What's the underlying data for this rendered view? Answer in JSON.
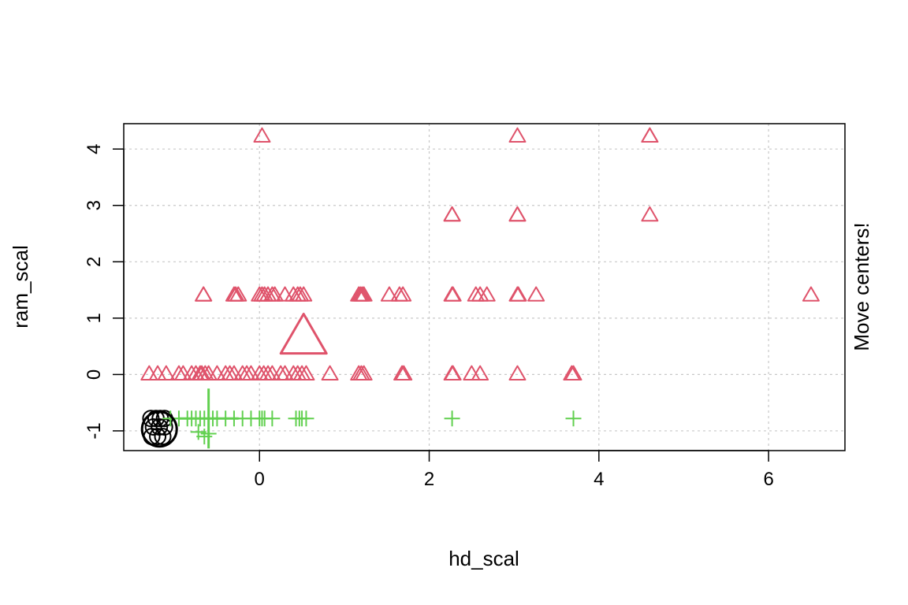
{
  "chart_data": {
    "type": "scatter",
    "title": "",
    "xlabel": "hd_scal",
    "ylabel": "ram_scal",
    "right_label": "Move centers!",
    "xlim": [
      -1.6,
      6.9
    ],
    "ylim": [
      -1.35,
      4.45
    ],
    "x_ticks": [
      0,
      2,
      4,
      6
    ],
    "y_ticks": [
      -1,
      0,
      1,
      2,
      3,
      4
    ],
    "grid": true,
    "series": [
      {
        "shape": "circle",
        "color": "#000000",
        "points": [
          [
            -1.28,
            -0.78
          ],
          [
            -1.22,
            -0.78
          ],
          [
            -1.17,
            -0.78
          ],
          [
            -1.12,
            -0.78
          ],
          [
            -1.27,
            -1.1
          ],
          [
            -1.2,
            -1.1
          ],
          [
            -1.14,
            -1.1
          ],
          [
            -1.25,
            -0.93
          ],
          [
            -1.18,
            -0.93
          ],
          [
            -1.12,
            -0.93
          ]
        ],
        "center": [
          -1.18,
          -0.97
        ]
      },
      {
        "shape": "triangle",
        "color": "#DF536B",
        "points": [
          [
            0.03,
            4.22
          ],
          [
            3.04,
            4.22
          ],
          [
            4.6,
            4.22
          ],
          [
            4.6,
            4.22
          ],
          [
            2.27,
            2.82
          ],
          [
            2.27,
            2.82
          ],
          [
            3.04,
            2.82
          ],
          [
            3.04,
            2.82
          ],
          [
            4.6,
            2.82
          ],
          [
            -0.66,
            1.4
          ],
          [
            -0.66,
            1.4
          ],
          [
            -0.3,
            1.4
          ],
          [
            -0.28,
            1.4
          ],
          [
            -0.25,
            1.4
          ],
          [
            0.0,
            1.4
          ],
          [
            0.03,
            1.4
          ],
          [
            0.06,
            1.4
          ],
          [
            0.1,
            1.4
          ],
          [
            0.15,
            1.4
          ],
          [
            0.18,
            1.4
          ],
          [
            0.3,
            1.4
          ],
          [
            0.4,
            1.4
          ],
          [
            0.45,
            1.4
          ],
          [
            0.48,
            1.4
          ],
          [
            0.52,
            1.4
          ],
          [
            1.17,
            1.4
          ],
          [
            1.19,
            1.4
          ],
          [
            1.21,
            1.4
          ],
          [
            1.23,
            1.4
          ],
          [
            1.53,
            1.4
          ],
          [
            1.65,
            1.4
          ],
          [
            1.69,
            1.4
          ],
          [
            2.27,
            1.4
          ],
          [
            2.28,
            1.4
          ],
          [
            2.55,
            1.4
          ],
          [
            2.6,
            1.4
          ],
          [
            2.68,
            1.4
          ],
          [
            3.04,
            1.4
          ],
          [
            3.05,
            1.4
          ],
          [
            3.26,
            1.4
          ],
          [
            6.5,
            1.4
          ],
          [
            -1.3,
            0.0
          ],
          [
            -1.2,
            0.0
          ],
          [
            -1.1,
            0.0
          ],
          [
            -0.95,
            0.0
          ],
          [
            -0.9,
            0.0
          ],
          [
            -0.8,
            0.0
          ],
          [
            -0.75,
            0.0
          ],
          [
            -0.7,
            0.0
          ],
          [
            -0.68,
            0.0
          ],
          [
            -0.64,
            0.0
          ],
          [
            -0.6,
            0.0
          ],
          [
            -0.5,
            0.0
          ],
          [
            -0.4,
            0.0
          ],
          [
            -0.35,
            0.0
          ],
          [
            -0.3,
            0.0
          ],
          [
            -0.2,
            0.0
          ],
          [
            -0.15,
            0.0
          ],
          [
            -0.1,
            0.0
          ],
          [
            0.0,
            0.0
          ],
          [
            0.05,
            0.0
          ],
          [
            0.1,
            0.0
          ],
          [
            0.15,
            0.0
          ],
          [
            0.25,
            0.0
          ],
          [
            0.3,
            0.0
          ],
          [
            0.4,
            0.0
          ],
          [
            0.45,
            0.0
          ],
          [
            0.5,
            0.0
          ],
          [
            0.55,
            0.0
          ],
          [
            0.83,
            0.0
          ],
          [
            1.17,
            0.0
          ],
          [
            1.2,
            0.0
          ],
          [
            1.23,
            0.0
          ],
          [
            1.68,
            0.0
          ],
          [
            1.7,
            0.0
          ],
          [
            2.27,
            0.0
          ],
          [
            2.28,
            0.0
          ],
          [
            2.5,
            0.0
          ],
          [
            2.6,
            0.0
          ],
          [
            3.04,
            0.0
          ],
          [
            3.68,
            0.0
          ],
          [
            3.7,
            0.0
          ]
        ],
        "center": [
          0.52,
          0.64
        ]
      },
      {
        "shape": "cross",
        "color": "#61D04F",
        "points": [
          [
            -1.05,
            -0.78
          ],
          [
            -0.95,
            -0.78
          ],
          [
            -0.85,
            -0.78
          ],
          [
            -0.8,
            -0.78
          ],
          [
            -0.75,
            -0.78
          ],
          [
            -0.7,
            -0.78
          ],
          [
            -0.65,
            -0.78
          ],
          [
            -0.6,
            -0.78
          ],
          [
            -0.55,
            -0.78
          ],
          [
            -0.5,
            -0.78
          ],
          [
            -0.4,
            -0.78
          ],
          [
            -0.3,
            -0.78
          ],
          [
            -0.2,
            -0.78
          ],
          [
            -0.1,
            -0.78
          ],
          [
            0.0,
            -0.78
          ],
          [
            0.03,
            -0.78
          ],
          [
            0.06,
            -0.78
          ],
          [
            0.15,
            -0.78
          ],
          [
            0.43,
            -0.78
          ],
          [
            0.47,
            -0.78
          ],
          [
            0.5,
            -0.78
          ],
          [
            0.55,
            -0.78
          ],
          [
            2.27,
            -0.78
          ],
          [
            3.7,
            -0.78
          ],
          [
            -0.65,
            -1.1
          ],
          [
            -0.72,
            -1.02
          ],
          [
            -0.6,
            -1.05
          ]
        ],
        "center": [
          -0.6,
          -0.78
        ]
      }
    ]
  }
}
